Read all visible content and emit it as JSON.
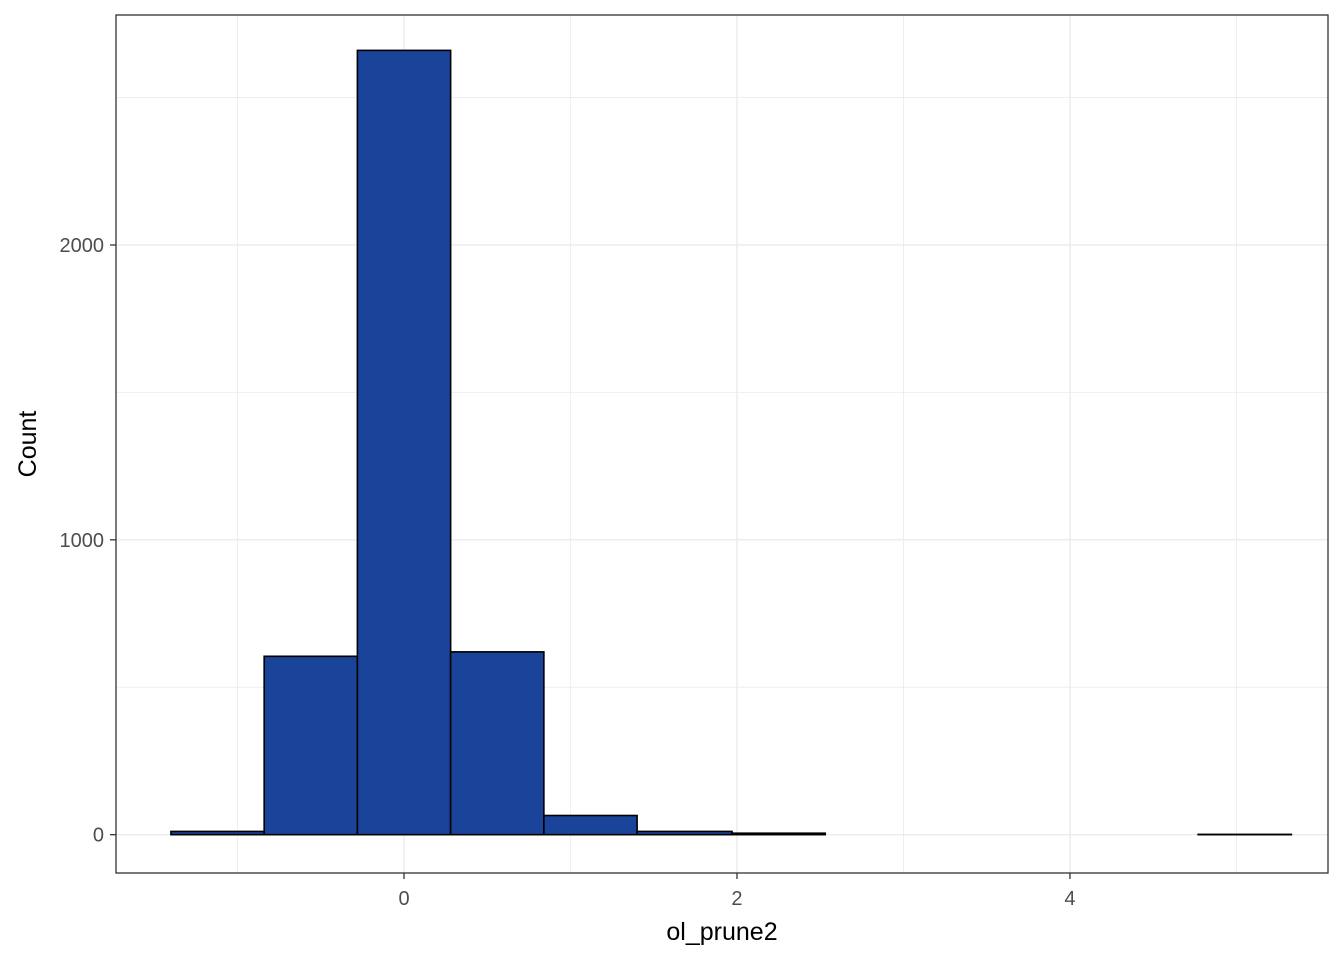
{
  "chart_data": {
    "type": "histogram",
    "xlabel": "ol_prune2",
    "ylabel": "Count",
    "x_ticks": [
      0,
      2,
      4
    ],
    "y_ticks": [
      0,
      1000,
      2000
    ],
    "xlim": [
      -1.73,
      5.55
    ],
    "ylim": [
      -130,
      2780
    ],
    "grid": true,
    "bins": [
      {
        "x0": -1.4,
        "x1": -0.84,
        "count": 11
      },
      {
        "x0": -0.84,
        "x1": -0.28,
        "count": 605
      },
      {
        "x0": -0.28,
        "x1": 0.28,
        "count": 2660
      },
      {
        "x0": 0.28,
        "x1": 0.84,
        "count": 620
      },
      {
        "x0": 0.84,
        "x1": 1.4,
        "count": 65
      },
      {
        "x0": 1.4,
        "x1": 1.97,
        "count": 11
      },
      {
        "x0": 1.97,
        "x1": 2.53,
        "count": 5
      },
      {
        "x0": 2.53,
        "x1": 3.09,
        "count": 0
      },
      {
        "x0": 3.09,
        "x1": 3.65,
        "count": 0
      },
      {
        "x0": 3.65,
        "x1": 4.21,
        "count": 0
      },
      {
        "x0": 4.21,
        "x1": 4.77,
        "count": 0
      },
      {
        "x0": 4.77,
        "x1": 5.33,
        "count": 1
      }
    ],
    "colors": {
      "fill": "#1a4499",
      "outline": "#000000",
      "grid": "#ebebeb",
      "panel_border": "#333333"
    }
  }
}
